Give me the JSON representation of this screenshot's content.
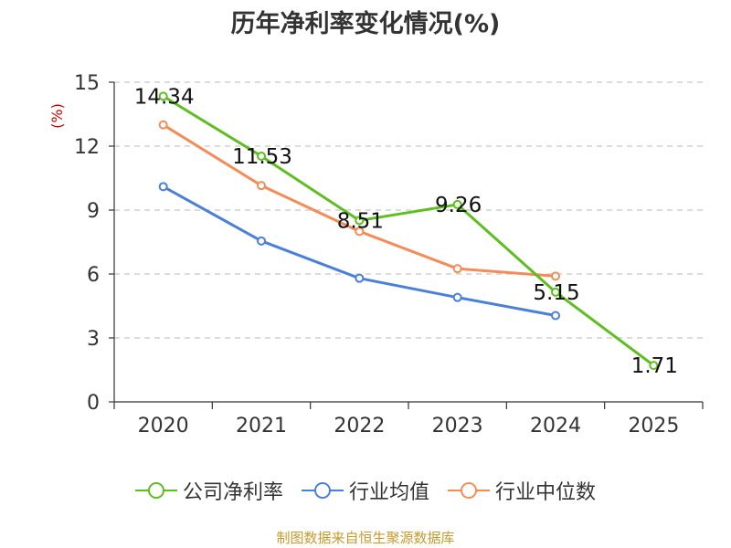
{
  "chart_data": {
    "type": "line",
    "title": "历年净利率变化情况(%)",
    "ylabel": "(%)",
    "xlabel": "",
    "categories": [
      "2020",
      "2021",
      "2022",
      "2023",
      "2024",
      "2025"
    ],
    "ylim": [
      0,
      15
    ],
    "yticks": [
      0,
      3,
      6,
      9,
      12,
      15
    ],
    "grid": true,
    "legend_position": "bottom",
    "series": [
      {
        "name": "公司净利率",
        "color": "#5cbf1f",
        "values": [
          14.34,
          11.53,
          8.51,
          9.26,
          5.15,
          1.71
        ],
        "labels": [
          "14.34",
          "11.53",
          "8.51",
          "9.26",
          "5.15",
          "1.71"
        ]
      },
      {
        "name": "行业均值",
        "color": "#4a7fdc",
        "values": [
          10.1,
          7.55,
          5.8,
          4.9,
          4.05,
          null
        ]
      },
      {
        "name": "行业中位数",
        "color": "#f58c57",
        "values": [
          13.0,
          10.15,
          8.0,
          6.25,
          5.9,
          null
        ]
      }
    ]
  },
  "source": "制图数据来自恒生聚源数据库"
}
